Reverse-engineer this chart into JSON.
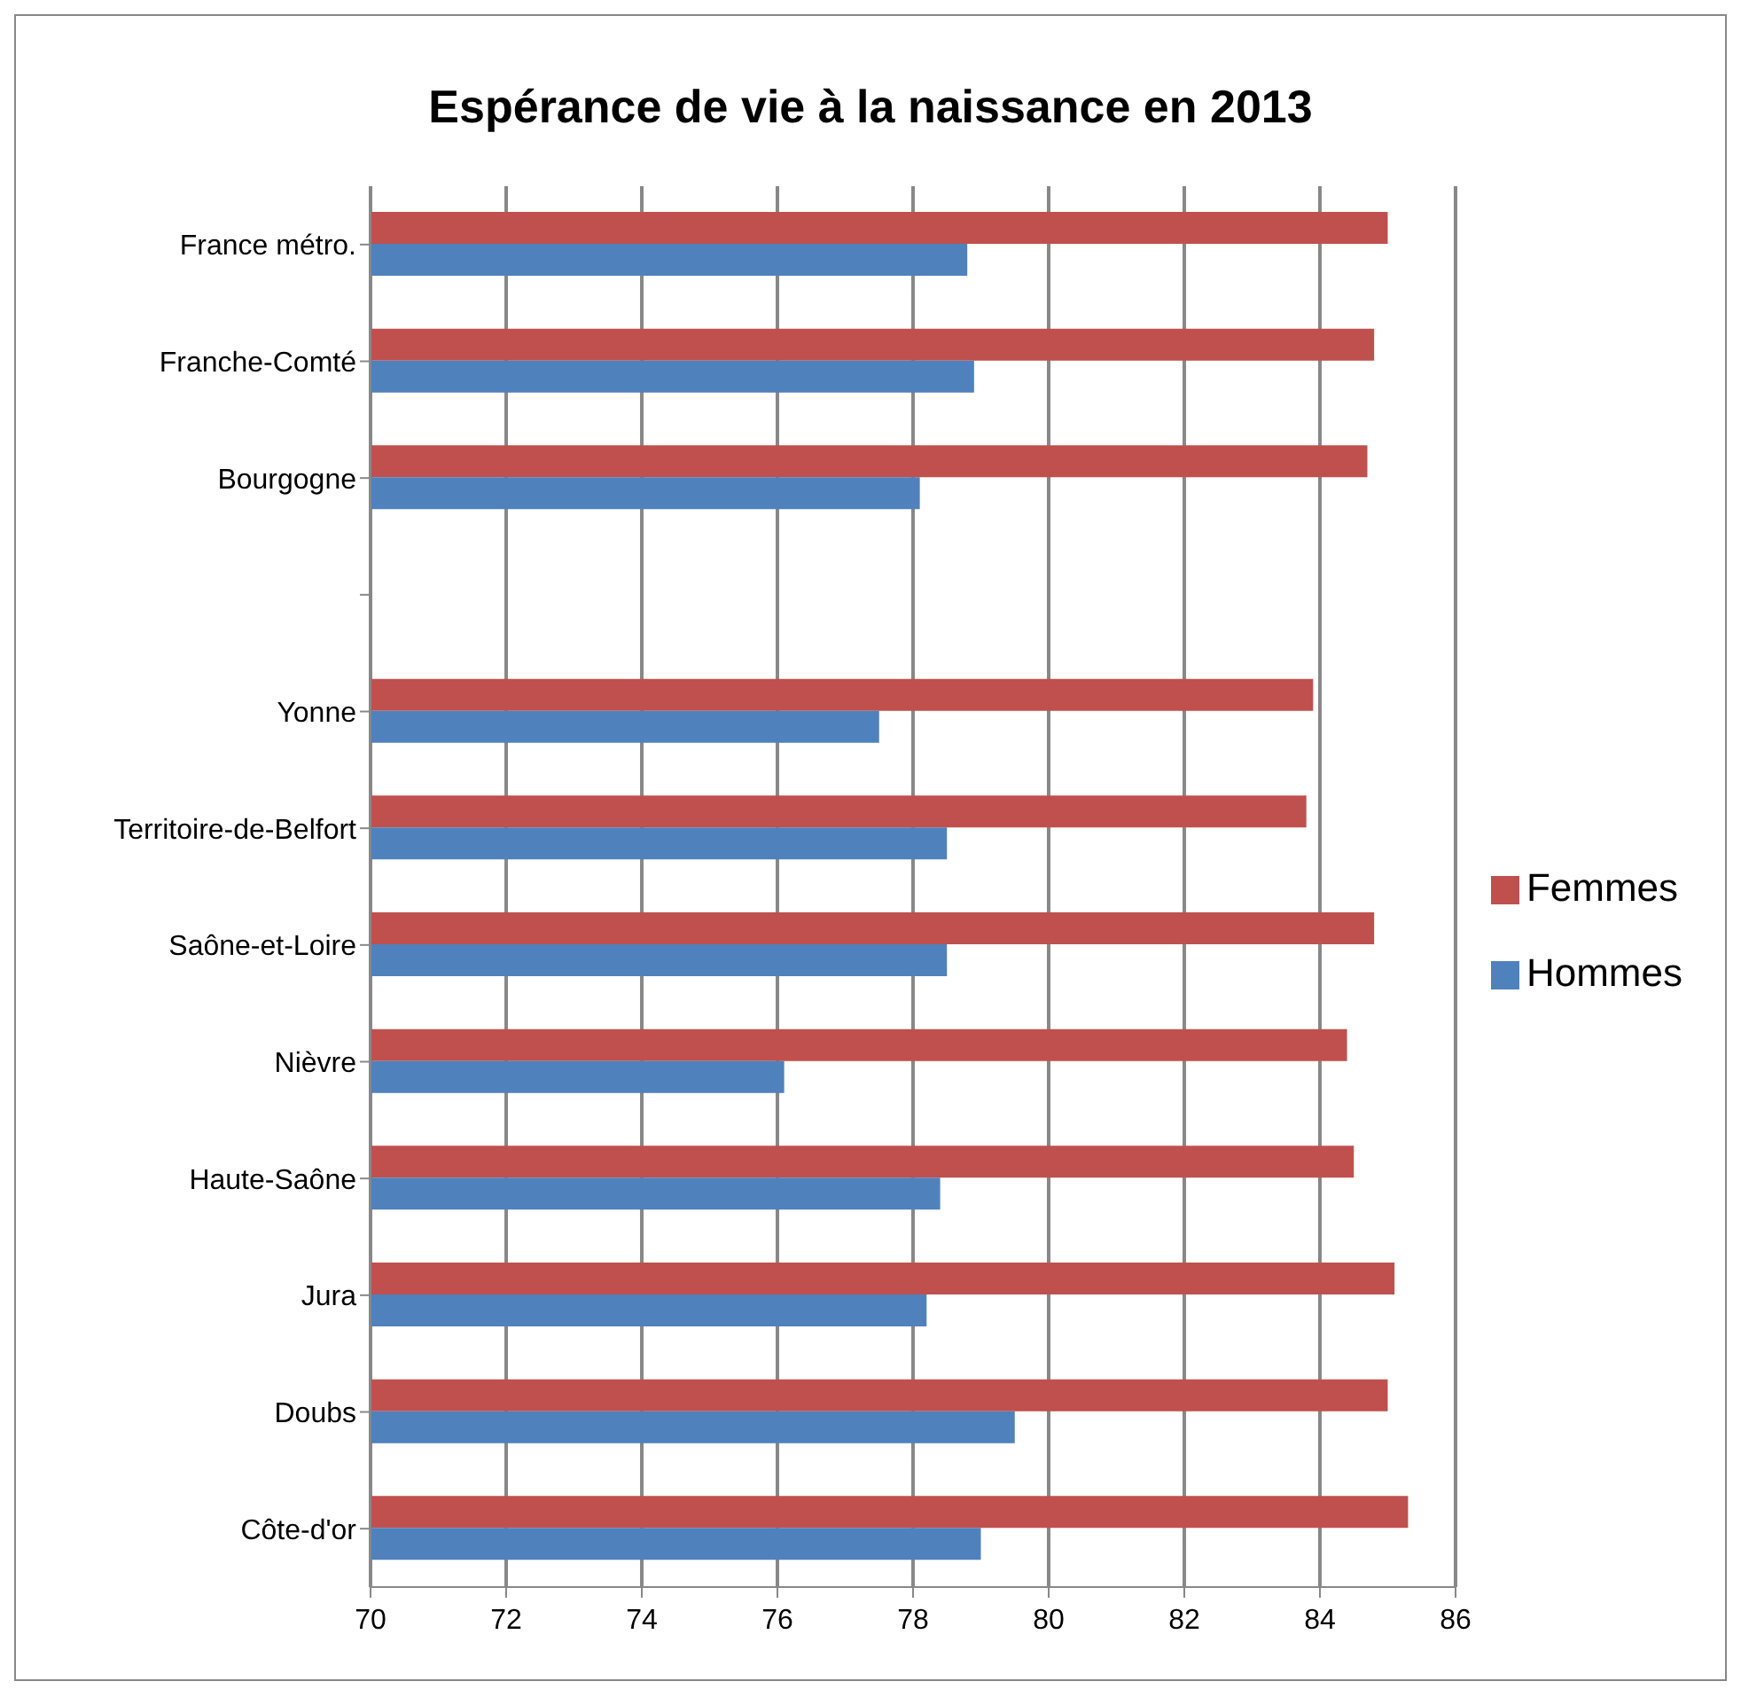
{
  "chart_data": {
    "type": "bar",
    "orientation": "horizontal",
    "title": "Espérance de vie à la naissance en 2013",
    "categories": [
      "France métro.",
      "Franche-Comté",
      "Bourgogne",
      null,
      "Yonne",
      "Territoire-de-Belfort",
      "Saône-et-Loire",
      "Nièvre",
      "Haute-Saône",
      "Jura",
      "Doubs",
      "Côte-d'or"
    ],
    "series": [
      {
        "name": "Femmes",
        "color": "#c0504d",
        "values": [
          85.0,
          84.8,
          84.7,
          null,
          83.9,
          83.8,
          84.8,
          84.4,
          84.5,
          85.1,
          85.0,
          85.3
        ]
      },
      {
        "name": "Hommes",
        "color": "#4f81bd",
        "values": [
          78.8,
          78.9,
          78.1,
          null,
          77.5,
          78.5,
          78.5,
          76.1,
          78.4,
          78.2,
          79.5,
          79.0
        ]
      }
    ],
    "xlim": [
      70,
      86
    ],
    "xticks": [
      70,
      72,
      74,
      76,
      78,
      80,
      82,
      84,
      86
    ],
    "grid": "x",
    "legend": "right"
  }
}
